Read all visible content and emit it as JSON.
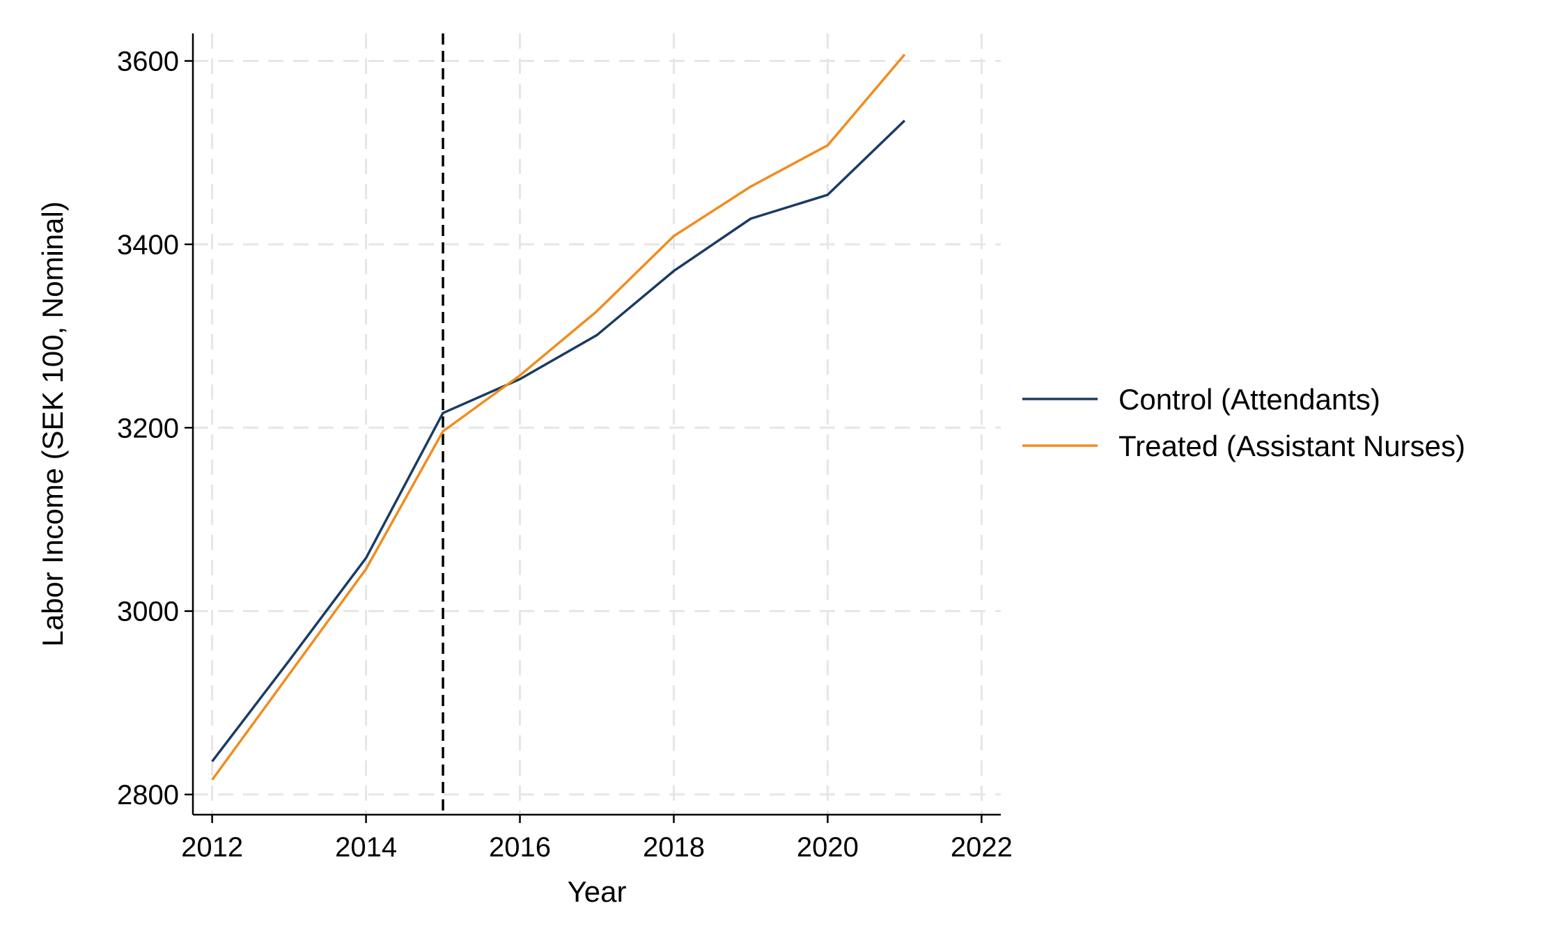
{
  "chart_data": {
    "type": "line",
    "xlabel": "Year",
    "ylabel": "Labor Income (SEK 100, Nominal)",
    "xlim": [
      2011.75,
      2022.25
    ],
    "ylim": [
      2778,
      3630
    ],
    "x_ticks": [
      2012,
      2014,
      2016,
      2018,
      2020,
      2022
    ],
    "y_ticks": [
      2800,
      3000,
      3200,
      3400,
      3600
    ],
    "grid": true,
    "reference_line": {
      "x": 2015,
      "style": "dashed"
    },
    "legend_position": "right",
    "x": [
      2012,
      2013,
      2014,
      2015,
      2016,
      2017,
      2018,
      2019,
      2020,
      2021
    ],
    "series": [
      {
        "name": "Control (Attendants)",
        "color": "#1a3b63",
        "values": [
          2836,
          2946,
          3058,
          3216,
          3253,
          3301,
          3371,
          3428,
          3454,
          3535
        ]
      },
      {
        "name": "Treated (Assistant Nurses)",
        "color": "#f08c1f",
        "values": [
          2816,
          2931,
          3046,
          3196,
          3257,
          3327,
          3409,
          3463,
          3508,
          3607
        ]
      }
    ]
  }
}
